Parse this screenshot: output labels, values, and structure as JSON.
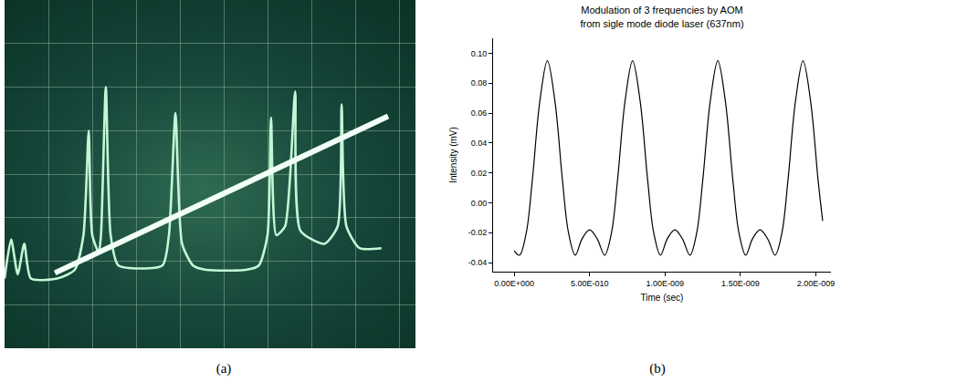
{
  "chart_data": [
    {
      "type": "line",
      "caption": "(a)",
      "xlim": [
        0,
        10
      ],
      "ylim": [
        0,
        8
      ],
      "xticks": [
        0,
        1,
        2,
        3,
        4,
        5,
        6,
        7,
        8,
        9,
        10
      ],
      "yticks": [
        0,
        1,
        2,
        3,
        4,
        5,
        6,
        7,
        8
      ],
      "grid": true,
      "tick_labels": false,
      "series": [
        {
          "color": "#c2f7d6",
          "x": [
            0,
            0.15,
            0.3,
            0.45,
            0.6,
            1.2,
            1.6,
            1.8,
            1.92,
            2.0,
            2.15,
            2.2,
            2.31,
            2.42,
            2.6,
            3.6,
            3.75,
            3.9,
            4.05,
            4.3,
            4.6,
            5.5,
            5.8,
            6.0,
            6.08,
            6.2,
            6.4,
            6.63,
            6.75,
            7.3,
            7.6,
            7.69,
            7.8,
            8.1,
            8.6
          ],
          "values": [
            1.6,
            2.5,
            1.7,
            2.4,
            1.6,
            1.6,
            1.8,
            2.6,
            5.0,
            2.6,
            2.2,
            2.6,
            6.0,
            2.6,
            1.9,
            1.9,
            2.6,
            5.4,
            2.4,
            1.9,
            1.8,
            1.8,
            1.9,
            2.6,
            5.3,
            2.6,
            2.8,
            5.9,
            2.7,
            2.4,
            2.8,
            5.6,
            2.8,
            2.3,
            2.3
          ]
        },
        {
          "color": "#f2fff6",
          "x": [
            1.15,
            8.75
          ],
          "values": [
            1.73,
            5.33
          ]
        }
      ]
    },
    {
      "type": "line",
      "caption": "(b)",
      "title": "Modulation of 3 frequencies by AOM\nfrom sigle mode diode laser (637nm)",
      "x_label": "Time (sec)",
      "y_label": "Intensity (mV)",
      "color": "#000000",
      "grid": false,
      "xlim": [
        -1.4e-10,
        2.1e-09
      ],
      "ylim": [
        -0.046,
        0.11
      ],
      "xticks": [
        {
          "value": 0,
          "label": "0.00E+000"
        },
        {
          "value": 5e-10,
          "label": "5.00E-010"
        },
        {
          "value": 1e-09,
          "label": "1.00E-009"
        },
        {
          "value": 1.5e-09,
          "label": "1.50E-009"
        },
        {
          "value": 2e-09,
          "label": "2.00E-009"
        }
      ],
      "yticks": [
        -0.04,
        -0.02,
        {
          "value": 0,
          "label": "0.00"
        },
        0.02,
        0.04,
        0.06,
        0.08,
        {
          "value": 0.1,
          "label": "0.10"
        }
      ],
      "x": [
        0,
        3.5e-11,
        8e-11,
        1.2e-10,
        1.7e-10,
        2.2e-10,
        2.7e-10,
        3.2e-10,
        3.6e-10,
        4.05e-10,
        4.5e-10,
        5e-10,
        5.5e-10,
        6e-10,
        6.45e-10,
        6.85e-10,
        7.35e-10,
        7.85e-10,
        8.35e-10,
        8.85e-10,
        9.25e-10,
        9.7e-10,
        1.015e-09,
        1.065e-09,
        1.115e-09,
        1.165e-09,
        1.21e-09,
        1.25e-09,
        1.3e-09,
        1.35e-09,
        1.4e-09,
        1.45e-09,
        1.49e-09,
        1.535e-09,
        1.58e-09,
        1.63e-09,
        1.68e-09,
        1.73e-09,
        1.775e-09,
        1.815e-09,
        1.865e-09,
        1.915e-09,
        1.965e-09,
        2.015e-09,
        2.045e-09
      ],
      "values": [
        -0.032,
        -0.035,
        -0.02,
        0.015,
        0.068,
        0.095,
        0.068,
        0.015,
        -0.02,
        -0.035,
        -0.024,
        -0.018,
        -0.024,
        -0.035,
        -0.02,
        0.015,
        0.068,
        0.095,
        0.068,
        0.015,
        -0.02,
        -0.035,
        -0.024,
        -0.018,
        -0.024,
        -0.035,
        -0.02,
        0.015,
        0.068,
        0.095,
        0.068,
        0.015,
        -0.02,
        -0.035,
        -0.024,
        -0.018,
        -0.024,
        -0.035,
        -0.02,
        0.015,
        0.068,
        0.095,
        0.068,
        0.015,
        -0.012
      ]
    }
  ]
}
